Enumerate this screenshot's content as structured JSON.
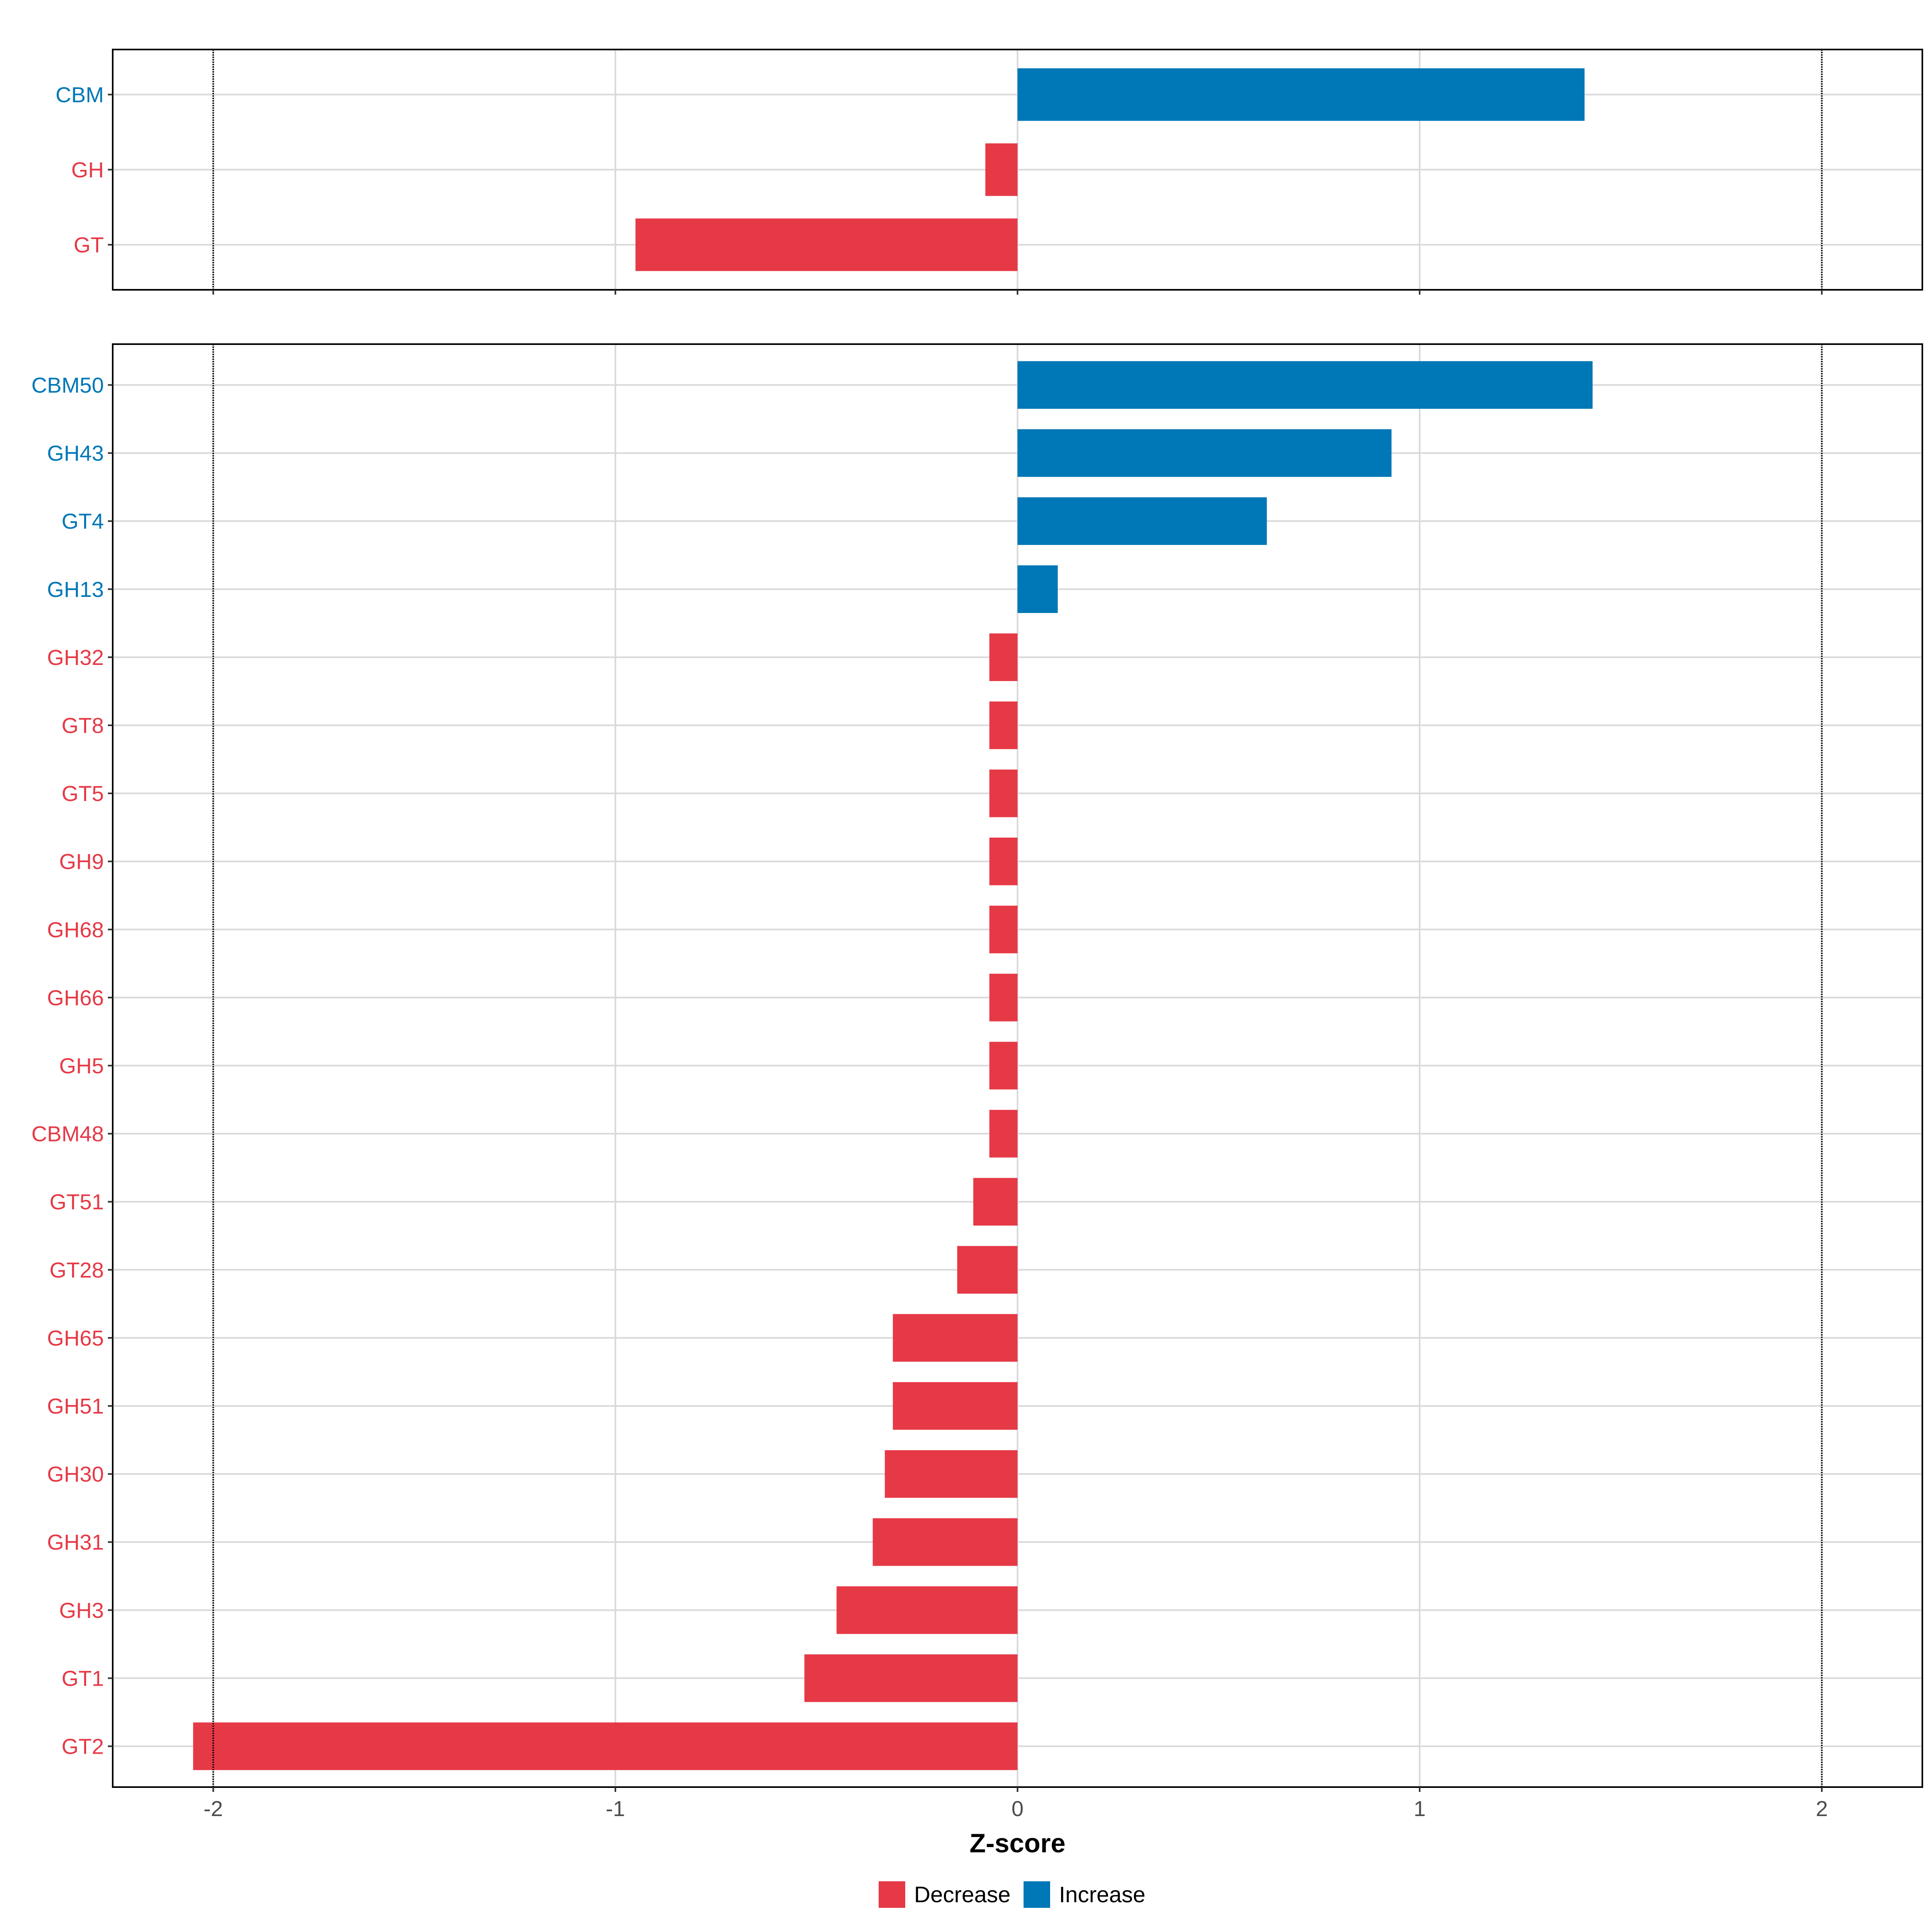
{
  "colors": {
    "decrease": "#E63946",
    "increase": "#0077B6",
    "grid": "#d9d9d9",
    "threshold_line": "#000000",
    "panel_border": "#000000"
  },
  "chart_data": [
    {
      "type": "bar",
      "orientation": "horizontal",
      "panel": "top",
      "categories": [
        "CBM",
        "GH",
        "GT"
      ],
      "values": [
        1.41,
        -0.08,
        -0.95
      ],
      "xlim": [
        -2.25,
        2.25
      ],
      "thresholds": [
        -2,
        2
      ],
      "grid": true
    },
    {
      "type": "bar",
      "orientation": "horizontal",
      "panel": "bottom",
      "categories": [
        "CBM50",
        "GH43",
        "GT4",
        "GH13",
        "GH32",
        "GT8",
        "GT5",
        "GH9",
        "GH68",
        "GH66",
        "GH5",
        "CBM48",
        "GT51",
        "GT28",
        "GH65",
        "GH51",
        "GH30",
        "GH31",
        "GH3",
        "GT1",
        "GT2"
      ],
      "values": [
        1.43,
        0.93,
        0.62,
        0.1,
        -0.07,
        -0.07,
        -0.07,
        -0.07,
        -0.07,
        -0.07,
        -0.07,
        -0.07,
        -0.11,
        -0.15,
        -0.31,
        -0.31,
        -0.33,
        -0.36,
        -0.45,
        -0.53,
        -2.05
      ],
      "xlim": [
        -2.25,
        2.25
      ],
      "thresholds": [
        -2,
        2
      ],
      "grid": true
    }
  ],
  "xaxis": {
    "title": "Z-score",
    "ticks": [
      -2,
      -1,
      0,
      1,
      2
    ],
    "tick_labels": [
      "-2",
      "-1",
      "0",
      "1",
      "2"
    ]
  },
  "legend": {
    "position": "bottom",
    "items": [
      {
        "label": "Decrease",
        "color_key": "decrease"
      },
      {
        "label": "Increase",
        "color_key": "increase"
      }
    ]
  }
}
